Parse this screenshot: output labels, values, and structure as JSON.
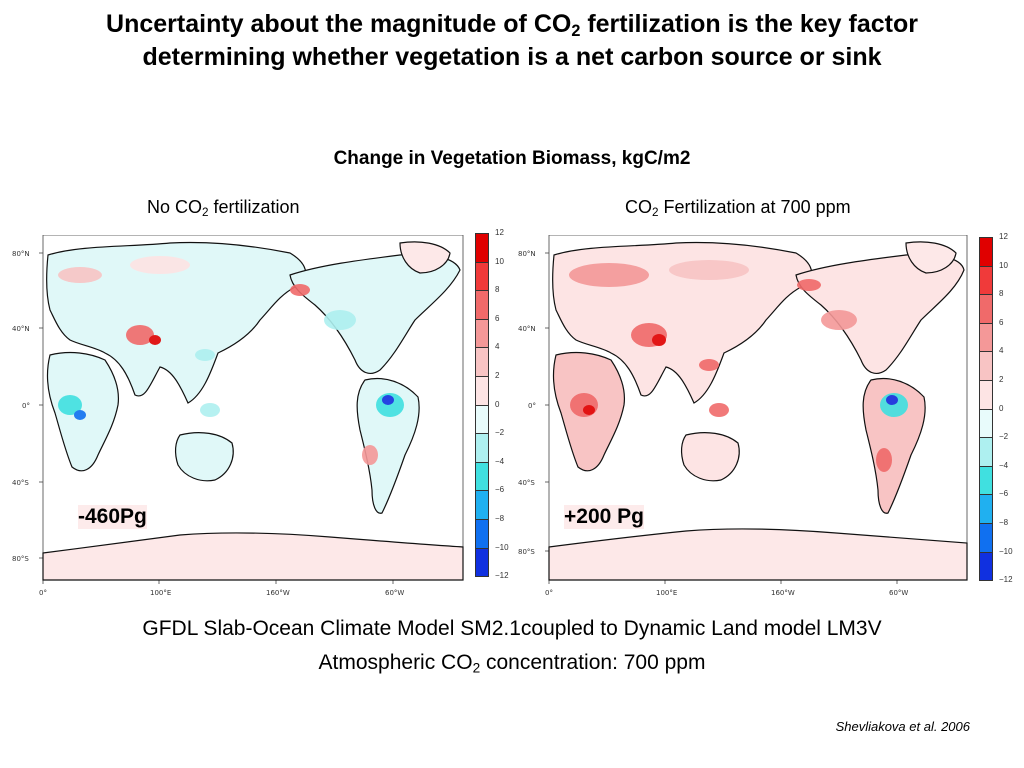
{
  "title": {
    "line1_a": "Uncertainty about the magnitude of CO",
    "line1_sub": "2",
    "line1_b": " fertilization is the key factor",
    "line2": "determining whether vegetation is a net carbon source or sink"
  },
  "subtitle": "Change in Vegetation Biomass, kgC/m2",
  "panels": [
    {
      "label_a": "No CO",
      "label_sub": "2",
      "label_b": " fertilization",
      "total": "-460Pg",
      "lat_ticks": [
        "80°N",
        "40°N",
        "0°",
        "40°S",
        "80°S"
      ],
      "lon_ticks": [
        "0°",
        "100°E",
        "160°W",
        "60°W"
      ]
    },
    {
      "label_a": "CO",
      "label_sub": "2",
      "label_b": " Fertilization at 700 ppm",
      "total": "+200 Pg",
      "lat_ticks": [
        "80°N",
        "40°N",
        "0°",
        "40°S",
        "80°S"
      ],
      "lon_ticks": [
        "0°",
        "100°E",
        "160°W",
        "60°W"
      ]
    }
  ],
  "colorbar": {
    "ticks": [
      "12",
      "10",
      "8",
      "6",
      "4",
      "2",
      "0",
      "−2",
      "−4",
      "−6",
      "−8",
      "−10",
      "−12"
    ],
    "colors": [
      "#e00000",
      "#f03a3a",
      "#f06a6a",
      "#f49898",
      "#f8c4c4",
      "#fde4e4",
      "#e8fbfb",
      "#aef0f0",
      "#40e0e0",
      "#20b0f0",
      "#1070f0",
      "#1030e0"
    ]
  },
  "footer": {
    "line1": "GFDL Slab-Ocean Climate Model SM2.1coupled to Dynamic Land model LM3V",
    "line2_a": "Atmospheric CO",
    "line2_sub": "2",
    "line2_b": " concentration: 700 ppm"
  },
  "citation": "Shevliakova et al. 2006"
}
